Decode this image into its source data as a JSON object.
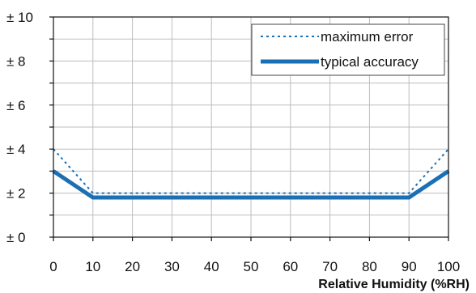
{
  "chart_data": {
    "type": "line",
    "title": "",
    "xlabel": "Relative Humidity (%RH)",
    "ylabel": "",
    "xlim": [
      0,
      100
    ],
    "ylim": [
      0,
      10
    ],
    "x_ticks": [
      0,
      10,
      20,
      30,
      40,
      50,
      60,
      70,
      80,
      90,
      100
    ],
    "x_tick_labels": [
      "0",
      "10",
      "20",
      "30",
      "40",
      "50",
      "60",
      "70",
      "80",
      "90",
      "100"
    ],
    "y_ticks": [
      0,
      2,
      4,
      6,
      8,
      10
    ],
    "y_tick_labels": [
      "± 0",
      "± 2",
      "± 4",
      "± 6",
      "± 8",
      "± 10"
    ],
    "grid": true,
    "legend_position": "top-right",
    "series": [
      {
        "name": "maximum error",
        "style": "dotted",
        "color": "#1a6fb5",
        "points": [
          [
            0,
            4
          ],
          [
            10,
            2
          ],
          [
            90,
            2
          ],
          [
            100,
            4
          ]
        ]
      },
      {
        "name": "typical accuracy",
        "style": "solid",
        "color": "#1a6fb5",
        "points": [
          [
            0,
            3
          ],
          [
            10,
            1.8
          ],
          [
            90,
            1.8
          ],
          [
            100,
            3
          ]
        ]
      }
    ]
  }
}
